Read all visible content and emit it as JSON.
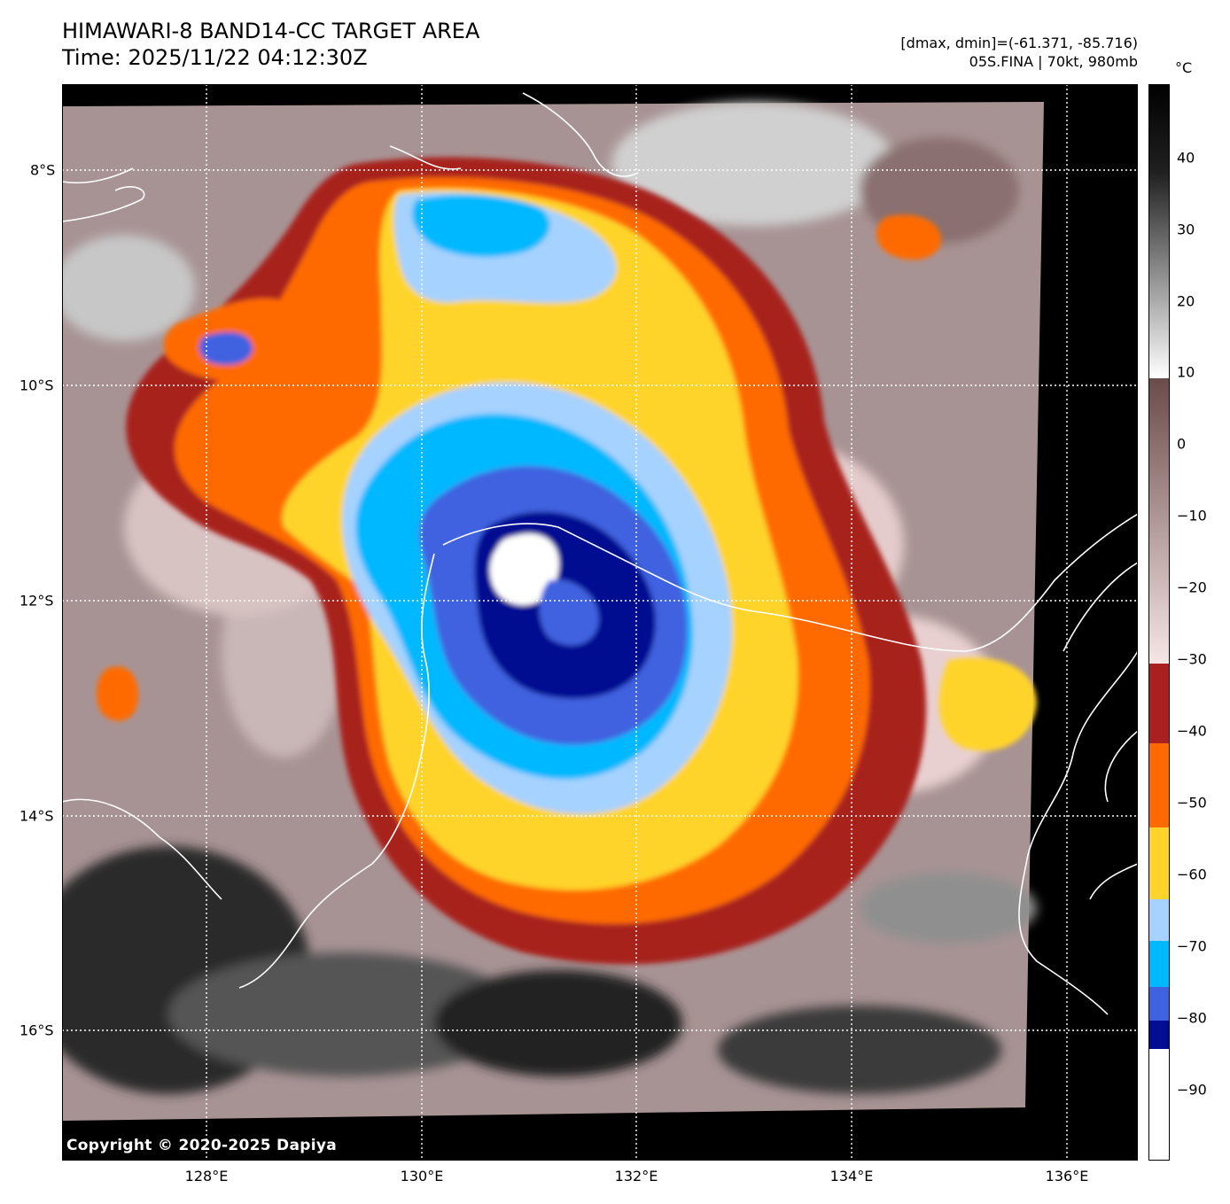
{
  "header": {
    "title_line1": "HIMAWARI-8 BAND14-CC TARGET AREA",
    "title_line2": "Time: 2025/11/22 04:12:30Z",
    "dmax_dmin": "[dmax, dmin]=(-61.371, -85.716)",
    "storm_info": "05S.FINA | 70kt, 980mb"
  },
  "map": {
    "lon_ticks": [
      "128°E",
      "130°E",
      "132°E",
      "134°E",
      "136°E"
    ],
    "lat_ticks": [
      "8°S",
      "10°S",
      "12°S",
      "14°S",
      "16°S"
    ],
    "copyright": "Copyright © 2020-2025 Dapiya",
    "storm_center": {
      "lon": 131.1,
      "lat": -11.7
    }
  },
  "colorbar": {
    "unit": "°C",
    "tick_labels": [
      "40",
      "30",
      "20",
      "10",
      "0",
      "−10",
      "−20",
      "−30",
      "−40",
      "−50",
      "−60",
      "−70",
      "−80",
      "−90"
    ],
    "colors": {
      "above_10": "#ffffff-to-#000000 grayscale",
      "0_to_10": "#6b4a4a",
      "-30_to_-40": "#a8201f",
      "-40_to_-50": "#ff6a00",
      "-50_to_-60": "#ffd42a",
      "-60_to_-65": "#a6d2ff",
      "-65_to_-75": "#00b8ff",
      "-75_to_-80": "#3f62e0",
      "-80_to_-85": "#000f91",
      "below_-85": "#ffffff"
    }
  }
}
